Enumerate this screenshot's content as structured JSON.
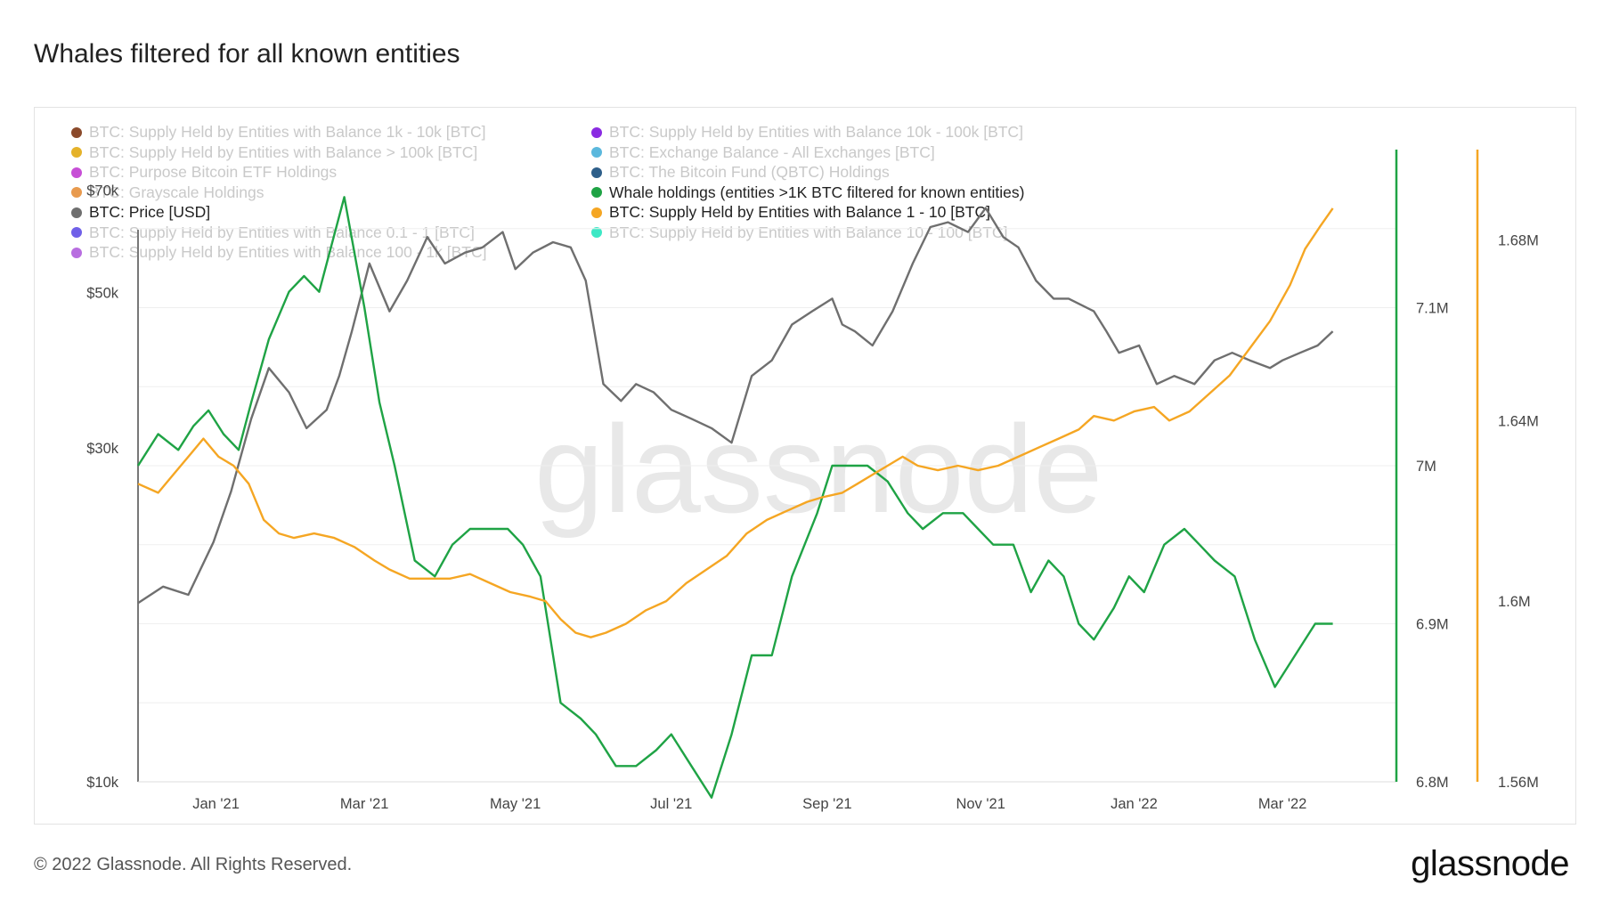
{
  "page": {
    "title": "Whales filtered for all known entities",
    "footer": "© 2022 Glassnode. All Rights Reserved.",
    "brand": "glassnode",
    "watermark": "glassnode"
  },
  "chart_data": {
    "type": "line",
    "legend": [
      {
        "label": "BTC: Supply Held by Entities with Balance 1k - 10k [BTC]",
        "color": "#8b4a2b",
        "active": false
      },
      {
        "label": "BTC: Supply Held by Entities with Balance 10k - 100k [BTC]",
        "color": "#8a2be2",
        "active": false
      },
      {
        "label": "BTC: Supply Held by Entities with Balance > 100k [BTC]",
        "color": "#e5b22a",
        "active": false
      },
      {
        "label": "BTC: Exchange Balance - All Exchanges [BTC]",
        "color": "#5bb8dd",
        "active": false
      },
      {
        "label": "BTC: Purpose Bitcoin ETF Holdings",
        "color": "#c74fd6",
        "active": false
      },
      {
        "label": "BTC: The Bitcoin Fund (QBTC) Holdings",
        "color": "#2e5f8a",
        "active": false
      },
      {
        "label": "BTC: Grayscale Holdings",
        "color": "#e89a4e",
        "active": false
      },
      {
        "label": "Whale holdings (entities >1K BTC filtered for known entities)",
        "color": "#1fa345",
        "active": true
      },
      {
        "label": "BTC: Price [USD]",
        "color": "#6f6f6f",
        "active": true
      },
      {
        "label": "BTC: Supply Held by Entities with Balance 1 - 10 [BTC]",
        "color": "#f5a623",
        "active": true
      },
      {
        "label": "BTC: Supply Held by Entities with Balance 0.1 - 1 [BTC]",
        "color": "#7060e8",
        "active": false
      },
      {
        "label": "BTC: Supply Held by Entities with Balance 10 - 100 [BTC]",
        "color": "#3de8c5",
        "active": false
      },
      {
        "label": "BTC: Supply Held by Entities with Balance 100 - 1k [BTC]",
        "color": "#b86ee0",
        "active": false
      }
    ],
    "x_ticks": [
      "Jan '21",
      "Mar '21",
      "May '21",
      "Jul '21",
      "Sep '21",
      "Nov '21",
      "Jan '22",
      "Mar '22"
    ],
    "x_tick_days": [
      31,
      90,
      150,
      212,
      274,
      335,
      396,
      455
    ],
    "x_range_days": [
      0,
      501
    ],
    "y_left": {
      "ticks": [
        "$10k",
        "$30k",
        "$50k",
        "$70k"
      ],
      "scale": "log",
      "ticks_values": [
        10000,
        30000,
        50000,
        70000
      ],
      "range": [
        10000,
        80000
      ]
    },
    "y_right1": {
      "ticks": [
        "6.8M",
        "6.9M",
        "7M",
        "7.1M"
      ],
      "ticks_values": [
        6.8,
        6.9,
        7.0,
        7.1
      ],
      "range": [
        6.8,
        7.2
      ]
    },
    "y_right2": {
      "ticks": [
        "1.56M",
        "1.6M",
        "1.64M",
        "1.68M"
      ],
      "ticks_values": [
        1.56,
        1.6,
        1.64,
        1.68
      ],
      "range": [
        1.56,
        1.7
      ]
    },
    "series": [
      {
        "name": "BTC: Price [USD]",
        "color": "#6f6f6f",
        "axis": "left",
        "points": [
          [
            0,
            18000
          ],
          [
            10,
            19000
          ],
          [
            20,
            18500
          ],
          [
            30,
            22000
          ],
          [
            37,
            26000
          ],
          [
            45,
            33000
          ],
          [
            52,
            39000
          ],
          [
            60,
            36000
          ],
          [
            67,
            32000
          ],
          [
            75,
            34000
          ],
          [
            80,
            38000
          ],
          [
            85,
            44000
          ],
          [
            92,
            55000
          ],
          [
            100,
            47000
          ],
          [
            107,
            52000
          ],
          [
            115,
            60000
          ],
          [
            122,
            55000
          ],
          [
            130,
            57000
          ],
          [
            137,
            58000
          ],
          [
            145,
            61000
          ],
          [
            150,
            54000
          ],
          [
            157,
            57000
          ],
          [
            165,
            59000
          ],
          [
            172,
            58000
          ],
          [
            178,
            52000
          ],
          [
            185,
            37000
          ],
          [
            192,
            35000
          ],
          [
            198,
            37000
          ],
          [
            205,
            36000
          ],
          [
            212,
            34000
          ],
          [
            220,
            33000
          ],
          [
            228,
            32000
          ],
          [
            236,
            30500
          ],
          [
            244,
            38000
          ],
          [
            252,
            40000
          ],
          [
            260,
            45000
          ],
          [
            268,
            47000
          ],
          [
            276,
            49000
          ],
          [
            280,
            45000
          ],
          [
            285,
            44000
          ],
          [
            292,
            42000
          ],
          [
            300,
            47000
          ],
          [
            308,
            55000
          ],
          [
            315,
            62000
          ],
          [
            322,
            63000
          ],
          [
            330,
            61000
          ],
          [
            337,
            66000
          ],
          [
            344,
            60000
          ],
          [
            350,
            58000
          ],
          [
            357,
            52000
          ],
          [
            364,
            49000
          ],
          [
            370,
            49000
          ],
          [
            380,
            47000
          ],
          [
            385,
            44000
          ],
          [
            390,
            41000
          ],
          [
            398,
            42000
          ],
          [
            405,
            37000
          ],
          [
            412,
            38000
          ],
          [
            420,
            37000
          ],
          [
            428,
            40000
          ],
          [
            435,
            41000
          ],
          [
            442,
            40000
          ],
          [
            450,
            39000
          ],
          [
            455,
            40000
          ],
          [
            462,
            41000
          ],
          [
            469,
            42000
          ],
          [
            475,
            44000
          ]
        ]
      },
      {
        "name": "Whale holdings (entities >1K BTC filtered for known entities)",
        "color": "#1fa345",
        "axis": "right1",
        "points": [
          [
            0,
            7.0
          ],
          [
            8,
            7.02
          ],
          [
            16,
            7.01
          ],
          [
            22,
            7.025
          ],
          [
            28,
            7.035
          ],
          [
            34,
            7.02
          ],
          [
            40,
            7.01
          ],
          [
            45,
            7.04
          ],
          [
            52,
            7.08
          ],
          [
            60,
            7.11
          ],
          [
            66,
            7.12
          ],
          [
            72,
            7.11
          ],
          [
            82,
            7.17
          ],
          [
            90,
            7.1
          ],
          [
            96,
            7.04
          ],
          [
            102,
            7.0
          ],
          [
            110,
            6.94
          ],
          [
            118,
            6.93
          ],
          [
            125,
            6.95
          ],
          [
            132,
            6.96
          ],
          [
            140,
            6.96
          ],
          [
            147,
            6.96
          ],
          [
            153,
            6.95
          ],
          [
            160,
            6.93
          ],
          [
            168,
            6.85
          ],
          [
            176,
            6.84
          ],
          [
            182,
            6.83
          ],
          [
            190,
            6.81
          ],
          [
            198,
            6.81
          ],
          [
            206,
            6.82
          ],
          [
            212,
            6.83
          ],
          [
            220,
            6.81
          ],
          [
            228,
            6.79
          ],
          [
            236,
            6.83
          ],
          [
            244,
            6.88
          ],
          [
            252,
            6.88
          ],
          [
            260,
            6.93
          ],
          [
            270,
            6.97
          ],
          [
            276,
            7.0
          ],
          [
            282,
            7.0
          ],
          [
            290,
            7.0
          ],
          [
            298,
            6.99
          ],
          [
            306,
            6.97
          ],
          [
            312,
            6.96
          ],
          [
            320,
            6.97
          ],
          [
            328,
            6.97
          ],
          [
            334,
            6.96
          ],
          [
            340,
            6.95
          ],
          [
            348,
            6.95
          ],
          [
            355,
            6.92
          ],
          [
            362,
            6.94
          ],
          [
            368,
            6.93
          ],
          [
            374,
            6.9
          ],
          [
            380,
            6.89
          ],
          [
            388,
            6.91
          ],
          [
            394,
            6.93
          ],
          [
            400,
            6.92
          ],
          [
            408,
            6.95
          ],
          [
            416,
            6.96
          ],
          [
            422,
            6.95
          ],
          [
            428,
            6.94
          ],
          [
            436,
            6.93
          ],
          [
            444,
            6.89
          ],
          [
            452,
            6.86
          ],
          [
            460,
            6.88
          ],
          [
            468,
            6.9
          ],
          [
            475,
            6.9
          ]
        ]
      },
      {
        "name": "BTC: Supply Held by Entities with Balance 1 - 10 [BTC]",
        "color": "#f5a623",
        "axis": "right2",
        "points": [
          [
            0,
            1.626
          ],
          [
            8,
            1.624
          ],
          [
            14,
            1.628
          ],
          [
            20,
            1.632
          ],
          [
            26,
            1.636
          ],
          [
            32,
            1.632
          ],
          [
            38,
            1.63
          ],
          [
            44,
            1.626
          ],
          [
            50,
            1.618
          ],
          [
            56,
            1.615
          ],
          [
            62,
            1.614
          ],
          [
            70,
            1.615
          ],
          [
            78,
            1.614
          ],
          [
            86,
            1.612
          ],
          [
            94,
            1.609
          ],
          [
            100,
            1.607
          ],
          [
            108,
            1.605
          ],
          [
            116,
            1.605
          ],
          [
            124,
            1.605
          ],
          [
            132,
            1.606
          ],
          [
            140,
            1.604
          ],
          [
            148,
            1.602
          ],
          [
            156,
            1.601
          ],
          [
            162,
            1.6
          ],
          [
            168,
            1.596
          ],
          [
            174,
            1.593
          ],
          [
            180,
            1.592
          ],
          [
            186,
            1.593
          ],
          [
            194,
            1.595
          ],
          [
            202,
            1.598
          ],
          [
            210,
            1.6
          ],
          [
            218,
            1.604
          ],
          [
            226,
            1.607
          ],
          [
            234,
            1.61
          ],
          [
            242,
            1.615
          ],
          [
            250,
            1.618
          ],
          [
            258,
            1.62
          ],
          [
            266,
            1.622
          ],
          [
            272,
            1.623
          ],
          [
            280,
            1.624
          ],
          [
            286,
            1.626
          ],
          [
            292,
            1.628
          ],
          [
            298,
            1.63
          ],
          [
            304,
            1.632
          ],
          [
            310,
            1.63
          ],
          [
            318,
            1.629
          ],
          [
            326,
            1.63
          ],
          [
            334,
            1.629
          ],
          [
            342,
            1.63
          ],
          [
            350,
            1.632
          ],
          [
            358,
            1.634
          ],
          [
            366,
            1.636
          ],
          [
            374,
            1.638
          ],
          [
            380,
            1.641
          ],
          [
            388,
            1.64
          ],
          [
            396,
            1.642
          ],
          [
            404,
            1.643
          ],
          [
            410,
            1.64
          ],
          [
            418,
            1.642
          ],
          [
            426,
            1.646
          ],
          [
            434,
            1.65
          ],
          [
            442,
            1.656
          ],
          [
            450,
            1.662
          ],
          [
            458,
            1.67
          ],
          [
            464,
            1.678
          ],
          [
            470,
            1.683
          ],
          [
            475,
            1.687
          ]
        ]
      }
    ]
  }
}
